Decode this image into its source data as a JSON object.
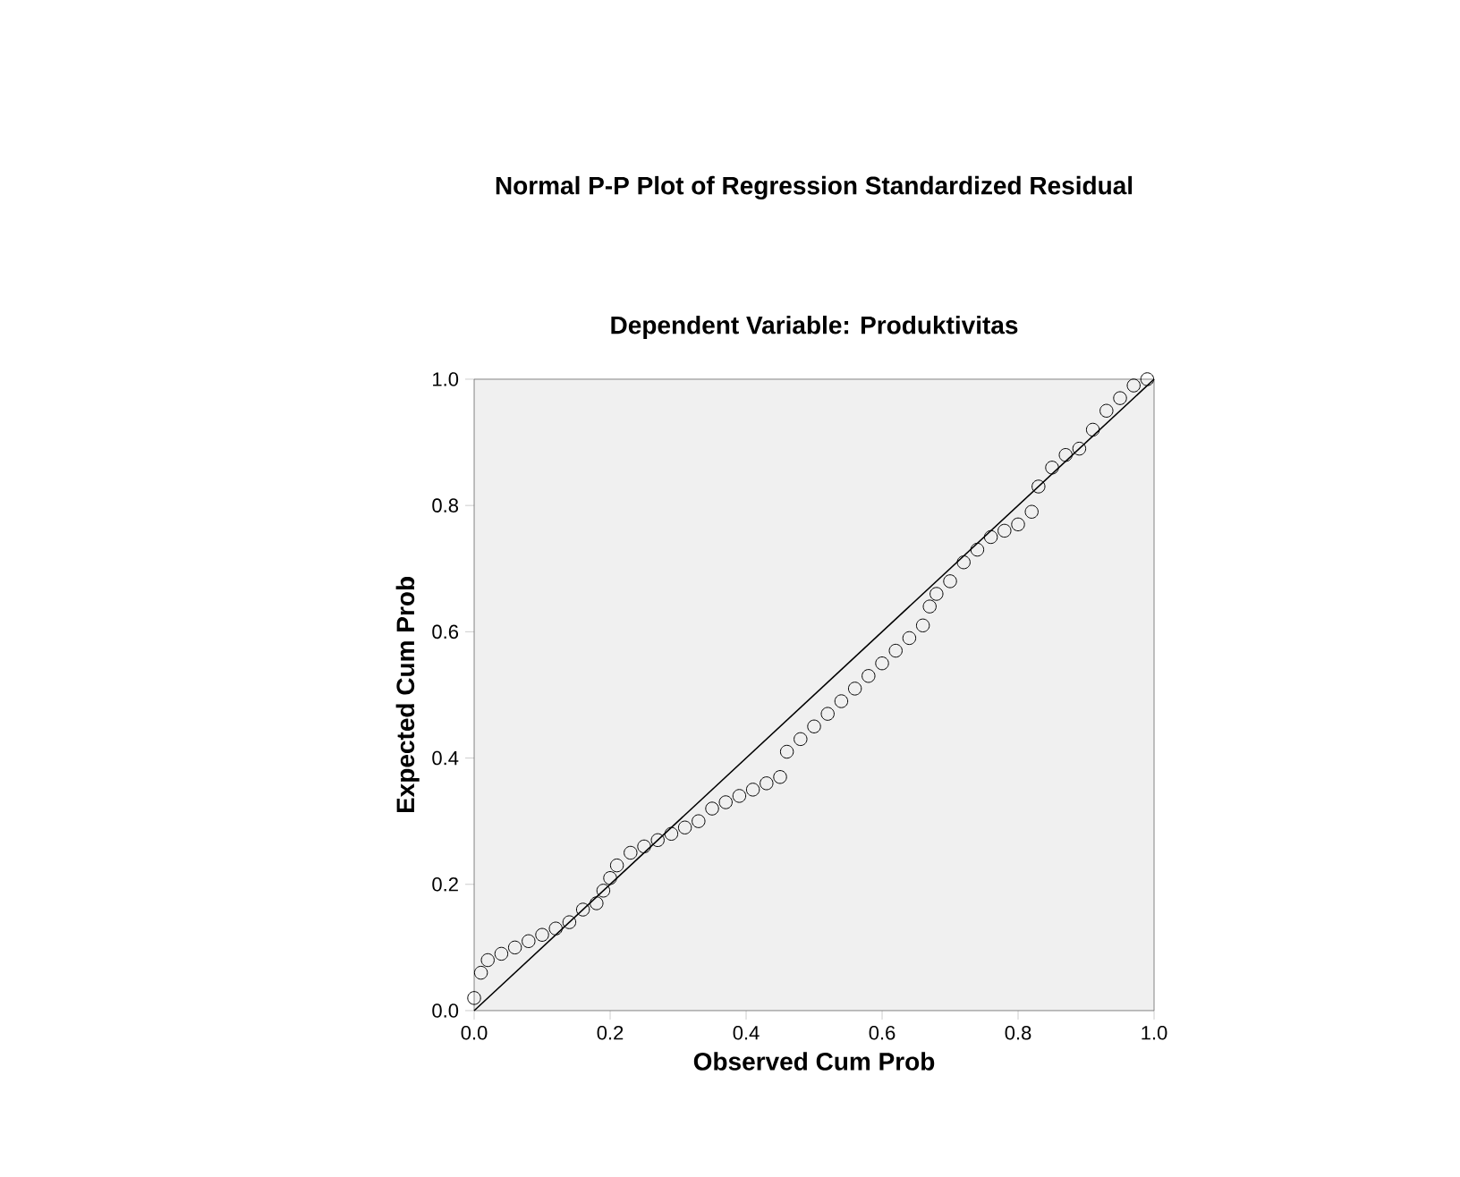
{
  "chart_data": {
    "type": "scatter",
    "title": "Normal P-P Plot of Regression Standardized Residual",
    "subtitle": "Dependent Variable: Produktivitas",
    "xlabel": "Observed Cum Prob",
    "ylabel": "Expected Cum Prob",
    "xlim": [
      0,
      1
    ],
    "ylim": [
      0,
      1
    ],
    "xticks": [
      {
        "value": 0,
        "label": "0.0"
      },
      0.2,
      0.4,
      0.6,
      0.8,
      {
        "value": 1,
        "label": "1.0"
      }
    ],
    "yticks": [
      {
        "value": 0,
        "label": "0.0"
      },
      0.2,
      0.4,
      0.6,
      0.8,
      {
        "value": 1,
        "label": "1.0"
      }
    ],
    "series": [
      {
        "marker": "circle",
        "color": "#000000",
        "x": [
          0.0,
          0.01,
          0.02,
          0.04,
          0.06,
          0.08,
          0.1,
          0.12,
          0.14,
          0.16,
          0.18,
          0.19,
          0.2,
          0.21,
          0.23,
          0.25,
          0.27,
          0.29,
          0.31,
          0.33,
          0.35,
          0.37,
          0.39,
          0.41,
          0.43,
          0.45,
          0.46,
          0.48,
          0.5,
          0.52,
          0.54,
          0.56,
          0.58,
          0.6,
          0.62,
          0.64,
          0.66,
          0.67,
          0.68,
          0.7,
          0.72,
          0.74,
          0.76,
          0.78,
          0.8,
          0.82,
          0.83,
          0.85,
          0.87,
          0.89,
          0.91,
          0.93,
          0.95,
          0.97,
          0.99
        ],
        "values": [
          0.02,
          0.06,
          0.08,
          0.09,
          0.1,
          0.11,
          0.12,
          0.13,
          0.14,
          0.16,
          0.17,
          0.19,
          0.21,
          0.23,
          0.25,
          0.26,
          0.27,
          0.28,
          0.29,
          0.3,
          0.32,
          0.33,
          0.34,
          0.35,
          0.36,
          0.37,
          0.41,
          0.43,
          0.45,
          0.47,
          0.49,
          0.51,
          0.53,
          0.55,
          0.57,
          0.59,
          0.61,
          0.64,
          0.66,
          0.68,
          0.71,
          0.73,
          0.75,
          0.76,
          0.77,
          0.79,
          0.83,
          0.86,
          0.88,
          0.89,
          0.92,
          0.95,
          0.97,
          0.99,
          1.0
        ]
      },
      {
        "type": "line",
        "marker": "none",
        "color": "#000000",
        "x": [
          0,
          1
        ],
        "values": [
          0,
          1
        ]
      }
    ]
  }
}
